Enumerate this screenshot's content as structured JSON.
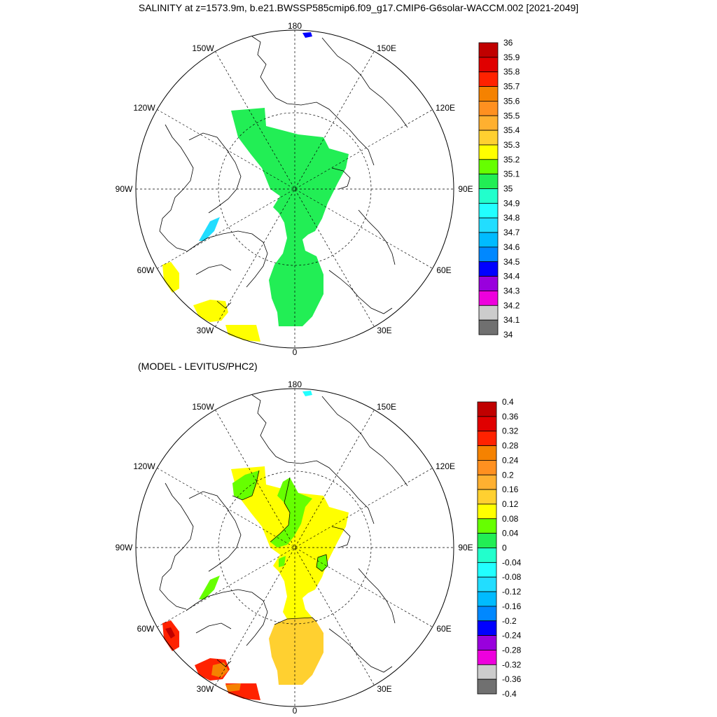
{
  "title": "SALINITY at z=1573.9m, b.e21.BWSSP585cmip6.f09_g17.CMIP6-G6solar-WACCM.002 [2021-2049]",
  "panels": [
    {
      "id": "top",
      "subtitle": "",
      "longitude_labels": [
        "180",
        "150E",
        "120E",
        "90E",
        "60E",
        "30E",
        "0",
        "30W",
        "60W",
        "90W",
        "120W",
        "150W"
      ],
      "colorbar": {
        "labels": [
          "36",
          "35.9",
          "35.8",
          "35.7",
          "35.6",
          "35.5",
          "35.4",
          "35.3",
          "35.2",
          "35.1",
          "35",
          "34.9",
          "34.8",
          "34.7",
          "34.6",
          "34.5",
          "34.4",
          "34.3",
          "34.2",
          "34.1",
          "34"
        ],
        "colors": [
          "#c00000",
          "#e00000",
          "#ff2200",
          "#f58200",
          "#ff9020",
          "#ffb030",
          "#ffd030",
          "#ffff00",
          "#66ff00",
          "#22ee55",
          "#22ffcc",
          "#22ffff",
          "#22ddff",
          "#00bbff",
          "#0088ff",
          "#0000ff",
          "#9900dd",
          "#ee00dd",
          "#cccccc",
          "#707070"
        ]
      },
      "regions": [
        {
          "name": "arctic-basin-green",
          "color": "#22ee55"
        },
        {
          "name": "baffin-bay-cyan",
          "color": "#22ddff"
        },
        {
          "name": "labrador-sea-yellow",
          "color": "#ffff00"
        },
        {
          "name": "north-atlantic-yellow",
          "color": "#ffff00"
        },
        {
          "name": "bering-strait-blue",
          "color": "#0000ff"
        }
      ]
    },
    {
      "id": "bottom",
      "subtitle": "(MODEL - LEVITUS/PHC2)",
      "longitude_labels": [
        "180",
        "150E",
        "120E",
        "90E",
        "60E",
        "30E",
        "0",
        "30W",
        "60W",
        "90W",
        "120W",
        "150W"
      ],
      "colorbar": {
        "labels": [
          "0.4",
          "0.36",
          "0.32",
          "0.28",
          "0.24",
          "0.2",
          "0.16",
          "0.12",
          "0.08",
          "0.04",
          "0",
          "-0.04",
          "-0.08",
          "-0.12",
          "-0.16",
          "-0.2",
          "-0.24",
          "-0.28",
          "-0.32",
          "-0.36",
          "-0.4"
        ],
        "colors": [
          "#c00000",
          "#e00000",
          "#ff2200",
          "#f58200",
          "#ff9020",
          "#ffb030",
          "#ffd030",
          "#ffff00",
          "#66ff00",
          "#22ee55",
          "#22ffcc",
          "#22ffff",
          "#22ddff",
          "#00bbff",
          "#0088ff",
          "#0000ff",
          "#9900dd",
          "#ee00dd",
          "#cccccc",
          "#707070"
        ]
      },
      "regions": [
        {
          "name": "arctic-basin-yellow",
          "color": "#ffff00"
        },
        {
          "name": "arctic-basin-green-patch",
          "color": "#66ff00"
        },
        {
          "name": "fram-strait-orange",
          "color": "#ffd030"
        },
        {
          "name": "baffin-bay-green",
          "color": "#66ff00"
        },
        {
          "name": "labrador-sea-red",
          "color": "#ff2200"
        },
        {
          "name": "north-atlantic-red",
          "color": "#ff2200"
        },
        {
          "name": "bering-strait-cyan",
          "color": "#22ffff"
        }
      ]
    }
  ]
}
